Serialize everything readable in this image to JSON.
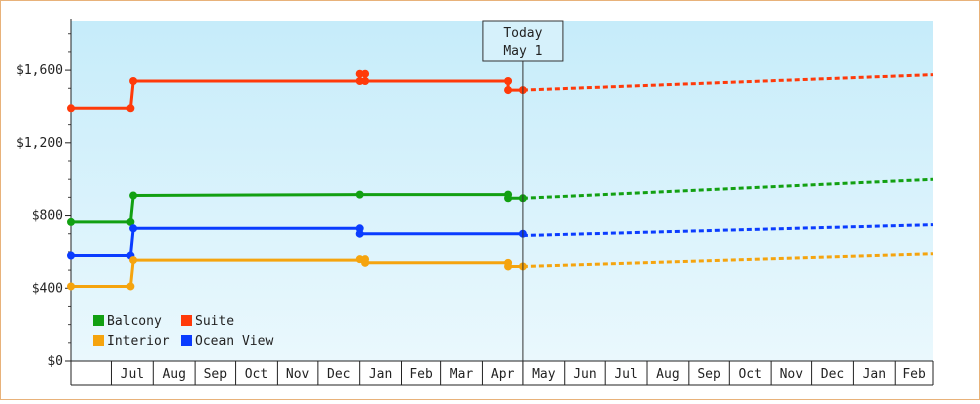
{
  "chart_data": {
    "type": "line",
    "yaxis": {
      "ticks": [
        "$0",
        "$400",
        "$800",
        "$1,200",
        "$1,600"
      ],
      "tick_values": [
        0,
        400,
        800,
        1200,
        1600
      ],
      "ylim": [
        0,
        1870
      ]
    },
    "xaxis": {
      "months": [
        "Jul",
        "Aug",
        "Sep",
        "Oct",
        "Nov",
        "Dec",
        "Jan",
        "Feb",
        "Mar",
        "Apr",
        "May",
        "Jun",
        "Jul",
        "Aug",
        "Sep",
        "Oct",
        "Nov",
        "Dec",
        "Jan",
        "Feb"
      ],
      "range_start": "2023-06-01",
      "range_end": "2025-03-01"
    },
    "today": {
      "label_line1": "Today",
      "label_line2": "May 1",
      "date": "2024-05-01"
    },
    "legend": {
      "position": "bottom-left",
      "items": [
        {
          "label": "Balcony",
          "color": "#12a012"
        },
        {
          "label": "Suite",
          "color": "#ff3a0a"
        },
        {
          "label": "Interior",
          "color": "#f5a40e"
        },
        {
          "label": "Ocean View",
          "color": "#0a3cff"
        }
      ]
    },
    "series": [
      {
        "name": "Suite",
        "color": "#ff3a0a",
        "history": [
          [
            "2023-06-01",
            1390
          ],
          [
            "2023-07-15",
            1390
          ],
          [
            "2023-07-15",
            1390
          ],
          [
            "2023-07-17",
            1540
          ],
          [
            "2024-01-01",
            1540
          ],
          [
            "2024-01-01",
            1580
          ],
          [
            "2024-01-05",
            1580
          ],
          [
            "2024-01-05",
            1540
          ],
          [
            "2024-04-20",
            1540
          ],
          [
            "2024-04-20",
            1490
          ],
          [
            "2024-05-01",
            1490
          ]
        ],
        "markers": [
          [
            "2023-06-01",
            1390
          ],
          [
            "2023-07-15",
            1390
          ],
          [
            "2023-07-17",
            1540
          ],
          [
            "2024-01-01",
            1540
          ],
          [
            "2024-01-01",
            1580
          ],
          [
            "2024-01-05",
            1580
          ],
          [
            "2024-01-05",
            1540
          ],
          [
            "2024-04-20",
            1540
          ],
          [
            "2024-04-20",
            1490
          ],
          [
            "2024-05-01",
            1490
          ]
        ],
        "forecast": [
          [
            "2024-05-01",
            1490
          ],
          [
            "2025-03-01",
            1575
          ]
        ]
      },
      {
        "name": "Balcony",
        "color": "#12a012",
        "history": [
          [
            "2023-06-01",
            765
          ],
          [
            "2023-07-15",
            765
          ],
          [
            "2023-07-17",
            910
          ],
          [
            "2024-01-01",
            915
          ],
          [
            "2024-04-20",
            915
          ],
          [
            "2024-04-20",
            895
          ],
          [
            "2024-05-01",
            895
          ]
        ],
        "markers": [
          [
            "2023-06-01",
            765
          ],
          [
            "2023-07-15",
            765
          ],
          [
            "2023-07-17",
            910
          ],
          [
            "2024-01-01",
            915
          ],
          [
            "2024-04-20",
            915
          ],
          [
            "2024-04-20",
            895
          ],
          [
            "2024-05-01",
            895
          ]
        ],
        "forecast": [
          [
            "2024-05-01",
            895
          ],
          [
            "2025-03-01",
            1000
          ]
        ]
      },
      {
        "name": "Ocean View",
        "color": "#0a3cff",
        "history": [
          [
            "2023-06-01",
            580
          ],
          [
            "2023-07-15",
            580
          ],
          [
            "2023-07-17",
            730
          ],
          [
            "2024-01-01",
            730
          ],
          [
            "2024-01-01",
            700
          ],
          [
            "2024-05-01",
            700
          ]
        ],
        "markers": [
          [
            "2023-06-01",
            580
          ],
          [
            "2023-07-15",
            580
          ],
          [
            "2023-07-17",
            730
          ],
          [
            "2024-01-01",
            730
          ],
          [
            "2024-01-01",
            700
          ],
          [
            "2024-05-01",
            700
          ]
        ],
        "forecast": [
          [
            "2024-05-01",
            690
          ],
          [
            "2025-03-01",
            750
          ]
        ]
      },
      {
        "name": "Interior",
        "color": "#f5a40e",
        "history": [
          [
            "2023-06-01",
            410
          ],
          [
            "2023-07-15",
            410
          ],
          [
            "2023-07-17",
            555
          ],
          [
            "2024-01-01",
            555
          ],
          [
            "2024-01-01",
            560
          ],
          [
            "2024-01-05",
            560
          ],
          [
            "2024-01-05",
            540
          ],
          [
            "2024-04-20",
            540
          ],
          [
            "2024-04-20",
            520
          ],
          [
            "2024-05-01",
            520
          ]
        ],
        "markers": [
          [
            "2023-06-01",
            410
          ],
          [
            "2023-07-15",
            410
          ],
          [
            "2023-07-17",
            555
          ],
          [
            "2024-01-01",
            560
          ],
          [
            "2024-01-05",
            560
          ],
          [
            "2024-01-05",
            540
          ],
          [
            "2024-04-20",
            540
          ],
          [
            "2024-04-20",
            520
          ],
          [
            "2024-05-01",
            520
          ]
        ],
        "forecast": [
          [
            "2024-05-01",
            520
          ],
          [
            "2025-03-01",
            590
          ]
        ]
      }
    ]
  }
}
